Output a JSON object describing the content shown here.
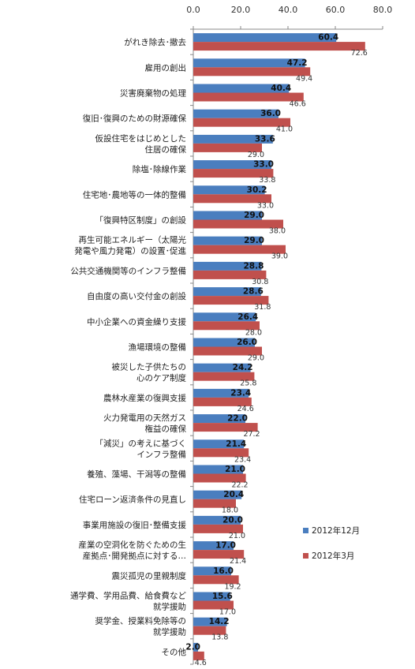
{
  "chart_data": {
    "type": "bar",
    "orientation": "horizontal",
    "xlim": [
      0,
      80
    ],
    "xticks": [
      "0.0",
      "20.0",
      "40.0",
      "60.0",
      "80.0"
    ],
    "axis_position": "top",
    "grid": false,
    "legend_position": "right",
    "categories": [
      [
        "がれき除去･撤去"
      ],
      [
        "雇用の創出"
      ],
      [
        "災害廃棄物の処理"
      ],
      [
        "復旧･復興のための財源確保"
      ],
      [
        "仮設住宅をはじめとした",
        "住居の確保"
      ],
      [
        "除塩･除線作業"
      ],
      [
        "住宅地･農地等の一体的整備"
      ],
      [
        "「復興特区制度」の創設"
      ],
      [
        "再生可能エネルギー（太陽光",
        "発電や風力発電）の設置･促進"
      ],
      [
        "公共交通機関等のインフラ整備"
      ],
      [
        "自由度の高い交付金の創設"
      ],
      [
        "中小企業への資金繰り支援"
      ],
      [
        "漁場環境の整備"
      ],
      [
        "被災した子供たちの",
        "心のケア制度"
      ],
      [
        "農林水産業の復興支援"
      ],
      [
        "火力発電用の天然ガス",
        "権益の確保"
      ],
      [
        "「減災」の考えに基づく",
        "インフラ整備"
      ],
      [
        "養殖、藻場、干潟等の整備"
      ],
      [
        "住宅ローン返済条件の見直し"
      ],
      [
        "事業用施設の復旧･整備支援"
      ],
      [
        "産業の空洞化を防ぐための生",
        "産拠点･開発拠点に対する…"
      ],
      [
        "震災孤児の里親制度"
      ],
      [
        "通学費、学用品費、給食費など",
        "就学援助"
      ],
      [
        "奨学金、授業料免除等の",
        "就学援助"
      ],
      [
        "その他"
      ]
    ],
    "series": [
      {
        "name": "2012年12月",
        "color": "#4a7ebf",
        "values": [
          60.4,
          47.2,
          40.4,
          36.0,
          33.6,
          33.0,
          30.2,
          29.0,
          29.0,
          28.8,
          28.6,
          26.4,
          26.0,
          24.2,
          23.4,
          22.0,
          21.4,
          21.0,
          20.4,
          20.0,
          17.0,
          16.0,
          15.6,
          14.2,
          2.0
        ],
        "labels": [
          "60.4",
          "47.2",
          "40.4",
          "36.0",
          "33.6",
          "33.0",
          "30.2",
          "29.0",
          "29.0",
          "28.8",
          "28.6",
          "26.4",
          "26.0",
          "24.2",
          "23.4",
          "22.0",
          "21.4",
          "21.0",
          "20.4",
          "20.0",
          "17.0",
          "16.0",
          "15.6",
          "14.2",
          "2.0"
        ]
      },
      {
        "name": "2012年3月",
        "color": "#c0504d",
        "values": [
          72.6,
          49.4,
          46.6,
          41.0,
          29.0,
          33.8,
          33.0,
          38.0,
          39.0,
          30.8,
          31.8,
          28.0,
          29.0,
          25.8,
          24.6,
          27.2,
          23.4,
          22.2,
          18.0,
          21.0,
          21.4,
          19.2,
          17.0,
          13.8,
          4.6
        ],
        "labels": [
          "72.6",
          "49.4",
          "46.6",
          "41.0",
          "29.0",
          "33.8",
          "33.0",
          "38.0",
          "39.0",
          "30.8",
          "31.8",
          "28.0",
          "29.0",
          "25.8",
          "24.6",
          "27.2",
          "23.4",
          "22.2",
          "18.0",
          "21.0",
          "21.4",
          "19.2",
          "17.0",
          "13.8",
          "4.6"
        ]
      }
    ]
  }
}
